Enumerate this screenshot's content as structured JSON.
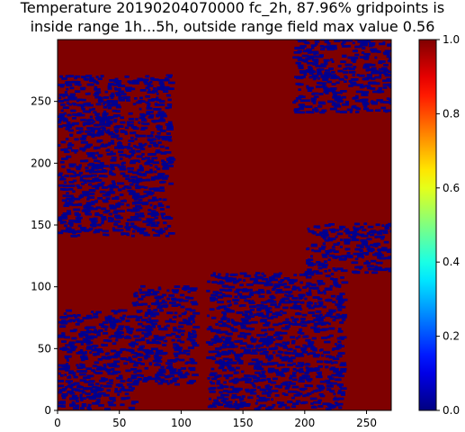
{
  "chart_data": {
    "type": "heatmap",
    "title_lines": [
      "Temperature 20190204070000 fc_2h, 87.96% gridpoints is",
      "inside range 1h...5h, outside range field max value 0.56"
    ],
    "xlabel": "",
    "ylabel": "",
    "xlim": [
      0,
      270
    ],
    "ylim": [
      0,
      300
    ],
    "x_ticks": [
      0,
      50,
      100,
      150,
      200,
      250
    ],
    "y_ticks": [
      0,
      50,
      100,
      150,
      200,
      250
    ],
    "colormap": "jet",
    "value_range": [
      0.0,
      1.0
    ],
    "colorbar_ticks": [
      "0.0",
      "0.2",
      "0.4",
      "0.6",
      "0.8",
      "1.0"
    ],
    "inside_range_value": 1.0,
    "outside_range_value": 0.0,
    "inside_range_percent": 87.96,
    "inside_color": "#7f0000",
    "outside_color": "#00008f",
    "outside_regions": [
      {
        "name": "lower-left",
        "x": [
          0,
          60
        ],
        "y": [
          0,
          80
        ]
      },
      {
        "name": "left-band",
        "x": [
          0,
          90
        ],
        "y": [
          140,
          270
        ]
      },
      {
        "name": "upper-right",
        "x": [
          190,
          270
        ],
        "y": [
          240,
          300
        ]
      },
      {
        "name": "right-edge",
        "x": [
          200,
          270
        ],
        "y": [
          110,
          150
        ]
      },
      {
        "name": "bottom-center",
        "x": [
          120,
          230
        ],
        "y": [
          0,
          110
        ]
      },
      {
        "name": "mid-left",
        "x": [
          60,
          110
        ],
        "y": [
          20,
          100
        ]
      }
    ]
  }
}
